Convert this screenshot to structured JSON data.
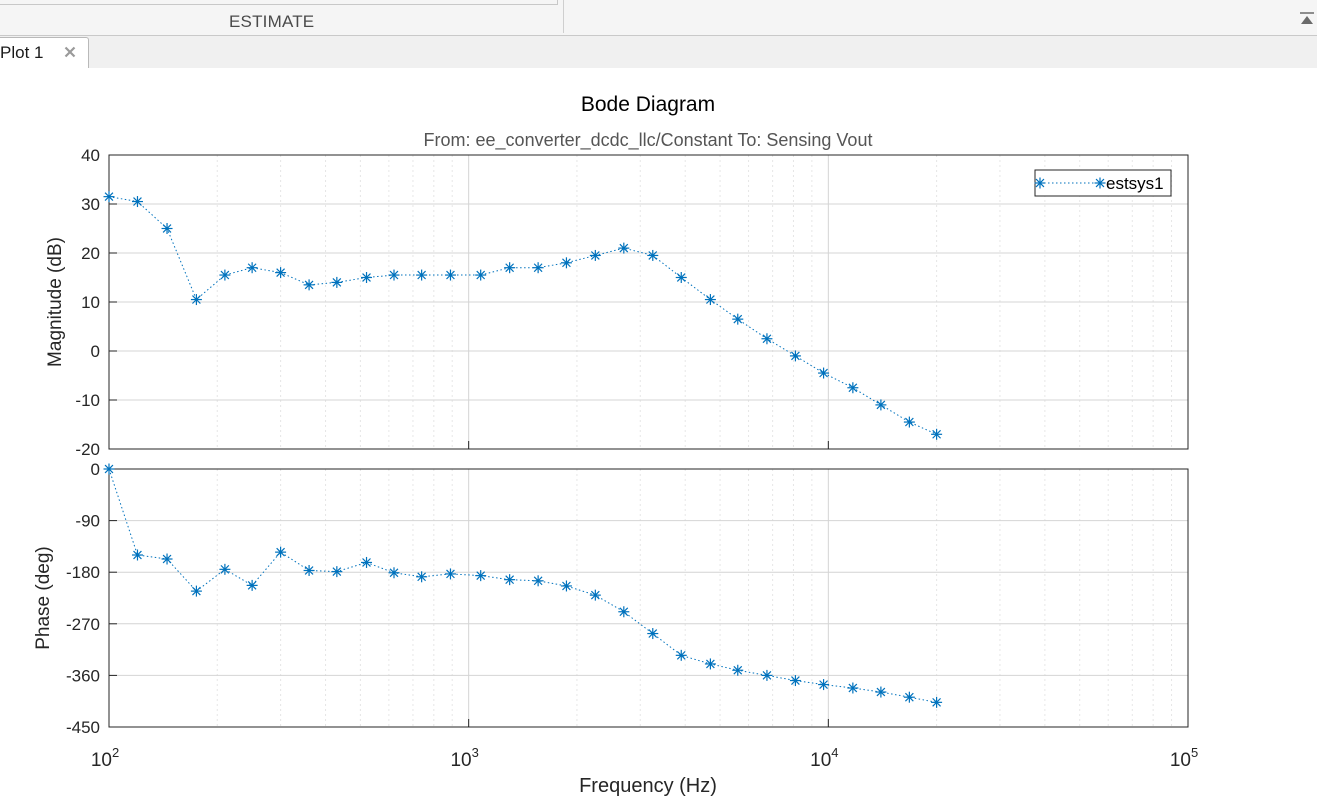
{
  "toolstrip": {
    "section_label": "ESTIMATE"
  },
  "tab": {
    "label": "Plot 1"
  },
  "icons": {
    "close": "close-icon",
    "collapse": "collapse-toolstrip-icon"
  },
  "colors": {
    "series": "#0072bd",
    "axes": "#262626",
    "grid": "#dcdcdc"
  },
  "chart_data": {
    "type": "line",
    "title": "Bode Diagram",
    "subtitle": "From: ee_converter_dcdc_llc/Constant  To: Sensing Vout",
    "xlabel": "Frequency  (Hz)",
    "xscale": "log",
    "xlim": [
      100,
      100000
    ],
    "x_ticks": [
      {
        "base": "10",
        "exp": "2"
      },
      {
        "base": "10",
        "exp": "3"
      },
      {
        "base": "10",
        "exp": "4"
      },
      {
        "base": "10",
        "exp": "5"
      }
    ],
    "legend": {
      "entries": [
        "estsys1"
      ],
      "placement": "top-right",
      "marker": "asterisk",
      "line": "dotted"
    },
    "x": [
      100,
      120,
      145,
      175,
      210,
      250,
      300,
      360,
      430,
      520,
      620,
      740,
      890,
      1080,
      1300,
      1560,
      1870,
      2250,
      2700,
      3250,
      3900,
      4700,
      5600,
      6750,
      8100,
      9700,
      11700,
      14000,
      16800,
      20000
    ],
    "magnitude": {
      "ylabel": "Magnitude (dB)",
      "ylim": [
        -20,
        40
      ],
      "yticks": [
        "40",
        "30",
        "20",
        "10",
        "0",
        "-10",
        "-20"
      ],
      "ytick_values": [
        40,
        30,
        20,
        10,
        0,
        -10,
        -20
      ],
      "values": [
        31.5,
        30.5,
        25,
        10.5,
        15.5,
        17,
        16,
        13.5,
        14,
        15,
        15.5,
        15.5,
        15.5,
        15.5,
        17,
        17,
        18,
        19.5,
        21,
        19.5,
        15,
        10.5,
        6.5,
        2.5,
        -1,
        -4.5,
        -7.5,
        -11,
        -14.5,
        -17
      ]
    },
    "phase": {
      "ylabel": "Phase (deg)",
      "ylim": [
        -450,
        0
      ],
      "yticks": [
        "0",
        "-90",
        "-180",
        "-270",
        "-360",
        "-450"
      ],
      "ytick_values": [
        0,
        -90,
        -180,
        -270,
        -360,
        -450
      ],
      "values": [
        0,
        -150,
        -157,
        -213,
        -175,
        -203,
        -145,
        -177,
        -179,
        -163,
        -181,
        -188,
        -183,
        -186,
        -193,
        -195,
        -204,
        -220,
        -249,
        -287,
        -325,
        -340,
        -351,
        -360,
        -369,
        -376,
        -382,
        -389,
        -398,
        -407
      ]
    }
  }
}
